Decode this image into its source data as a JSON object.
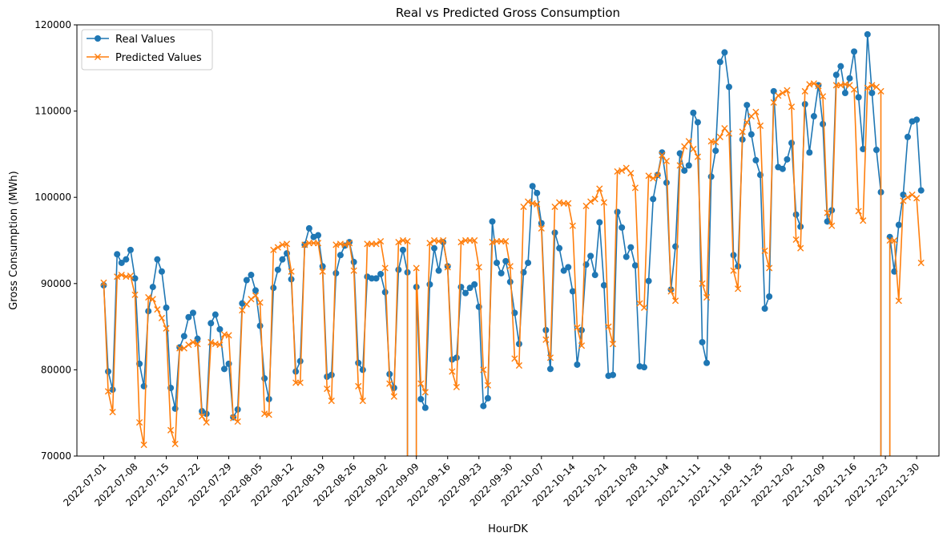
{
  "chart_data": {
    "type": "line",
    "title": "Real vs Predicted Gross Consumption",
    "xlabel": "HourDK",
    "ylabel": "Gross Consumption (MWh)",
    "ylim": [
      70000,
      120000
    ],
    "xlim": [
      "2022-06-25",
      "2023-01-04"
    ],
    "x_start": "2022-07-01",
    "x_tick_labels": [
      "2022-07-01",
      "2022-07-08",
      "2022-07-15",
      "2022-07-22",
      "2022-07-29",
      "2022-08-05",
      "2022-08-12",
      "2022-08-19",
      "2022-08-26",
      "2022-09-02",
      "2022-09-09",
      "2022-09-16",
      "2022-09-23",
      "2022-09-30",
      "2022-10-07",
      "2022-10-14",
      "2022-10-21",
      "2022-10-28",
      "2022-11-04",
      "2022-11-11",
      "2022-11-18",
      "2022-11-25",
      "2022-12-02",
      "2022-12-09",
      "2022-12-16",
      "2022-12-23",
      "2022-12-30"
    ],
    "y_tick_labels": [
      "70000",
      "80000",
      "90000",
      "100000",
      "110000",
      "120000"
    ],
    "y_ticks": [
      70000,
      80000,
      90000,
      100000,
      110000,
      120000
    ],
    "legend_position": "top-left",
    "grid": false,
    "series": [
      {
        "name": "Real Values",
        "color": "#1f77b4",
        "marker": "circle",
        "values": [
          89800,
          79800,
          77700,
          93400,
          92400,
          92800,
          93900,
          90600,
          80700,
          78100,
          86800,
          89600,
          92800,
          91400,
          87200,
          77900,
          75500,
          82600,
          83900,
          86100,
          86600,
          83600,
          75200,
          74900,
          85400,
          86400,
          84700,
          80100,
          80700,
          74500,
          75400,
          87700,
          90400,
          91000,
          89200,
          85100,
          79000,
          76600,
          89500,
          91600,
          92800,
          93500,
          90500,
          79800,
          81000,
          94500,
          96400,
          95400,
          95600,
          92000,
          79200,
          79400,
          91200,
          93300,
          94400,
          94800,
          92500,
          80800,
          80000,
          90800,
          90600,
          90600,
          91100,
          89000,
          79500,
          77900,
          91600,
          93900,
          91300,
          null,
          89600,
          76600,
          75600,
          89900,
          94100,
          91500,
          94800,
          92000,
          81200,
          81400,
          89600,
          88900,
          89500,
          89900,
          87300,
          75800,
          76700,
          97200,
          92400,
          91200,
          92600,
          90200,
          86600,
          83000,
          91300,
          92400,
          101300,
          100500,
          97000,
          84600,
          80100,
          95900,
          94100,
          91500,
          91900,
          89100,
          80600,
          84600,
          92200,
          93200,
          91000,
          97100,
          89800,
          79300,
          79400,
          98300,
          96500,
          93100,
          94200,
          92100,
          80400,
          80300,
          90300,
          99800,
          102600,
          105200,
          101700,
          89300,
          94300,
          105100,
          103100,
          103700,
          109800,
          108700,
          83200,
          80800,
          102400,
          105400,
          115700,
          116800,
          112800,
          93300,
          92000,
          106700,
          110700,
          107300,
          104300,
          102600,
          87100,
          88500,
          112300,
          103500,
          103300,
          104400,
          106300,
          98000,
          96600,
          110800,
          105200,
          109400,
          113000,
          108500,
          97200,
          98500,
          114200,
          115200,
          112100,
          113800,
          116900,
          111600,
          105600,
          118900,
          112100,
          105500,
          100600,
          null,
          95400,
          91400,
          96800,
          100300,
          107000,
          108800,
          109000,
          100800
        ]
      },
      {
        "name": "Predicted Values",
        "color": "#ff7f0e",
        "marker": "x",
        "values": [
          90100,
          77500,
          75100,
          90800,
          91000,
          90800,
          90900,
          88700,
          73900,
          71300,
          88400,
          88200,
          87000,
          86000,
          84800,
          73000,
          71400,
          82500,
          82500,
          82900,
          83200,
          83000,
          74600,
          73900,
          83200,
          83000,
          82900,
          84100,
          84000,
          74400,
          74000,
          86900,
          87600,
          88200,
          88600,
          87800,
          74900,
          74800,
          93900,
          94200,
          94500,
          94600,
          91400,
          78500,
          78500,
          94500,
          94700,
          94700,
          94700,
          91400,
          77800,
          76400,
          94500,
          94600,
          94500,
          94700,
          91500,
          78100,
          76400,
          94600,
          94600,
          94600,
          94900,
          91800,
          78400,
          76900,
          94800,
          95000,
          94900,
          null,
          91800,
          78400,
          77400,
          94700,
          95000,
          94900,
          95000,
          91900,
          79800,
          78000,
          94800,
          95000,
          95000,
          95000,
          91900,
          80000,
          78200,
          94800,
          94900,
          94900,
          94900,
          92000,
          81300,
          80500,
          98900,
          99500,
          99300,
          99200,
          96400,
          83500,
          81400,
          98900,
          99400,
          99300,
          99300,
          96700,
          84900,
          82800,
          99000,
          99500,
          99800,
          101000,
          99400,
          85000,
          83000,
          103000,
          103100,
          103400,
          102800,
          101100,
          87700,
          87200,
          102500,
          102200,
          102500,
          104900,
          104200,
          89100,
          88000,
          103700,
          105900,
          106500,
          105600,
          104700,
          90000,
          88400,
          106500,
          106400,
          107000,
          108000,
          107400,
          91500,
          89400,
          107600,
          108700,
          109400,
          109900,
          108300,
          93800,
          91800,
          111000,
          111800,
          112100,
          112400,
          110500,
          95100,
          94100,
          112300,
          113100,
          113200,
          112900,
          111700,
          98200,
          96700,
          113000,
          113000,
          113100,
          113000,
          112500,
          98400,
          97300,
          112700,
          113000,
          112800,
          112300,
          null,
          95000,
          95000,
          88000,
          99600,
          100000,
          100300,
          99900,
          92400
        ]
      }
    ]
  }
}
